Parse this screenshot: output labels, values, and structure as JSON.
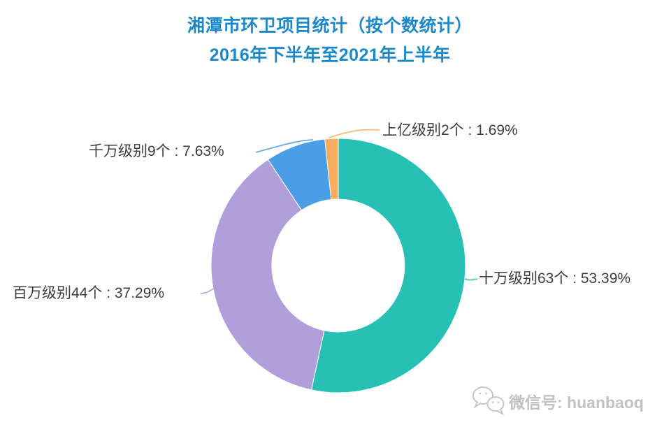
{
  "chart_data": {
    "type": "pie",
    "subtype": "donut",
    "title": "湘潭市环卫项目统计（按个数统计）",
    "subtitle": "2016年下半年至2021年上半年",
    "title_color": "#1b89c9",
    "label_color": "#3d3d3d",
    "unit": "个",
    "start_angle": "12-oclock",
    "direction": "clockwise",
    "inner_radius_ratio": 0.52,
    "background": "#ffffff",
    "slices": [
      {
        "name": "十万级别",
        "count": 63,
        "percent": 53.39,
        "color": "#26c0b4",
        "label_text": "十万级别63个 : 53.39%"
      },
      {
        "name": "百万级别",
        "count": 44,
        "percent": 37.29,
        "color": "#b19fdc",
        "label_text": "百万级别44个 : 37.29%"
      },
      {
        "name": "千万级别",
        "count": 9,
        "percent": 7.63,
        "color": "#4a9ee6",
        "label_text": "千万级别9个 : 7.63%"
      },
      {
        "name": "上亿级别",
        "count": 2,
        "percent": 1.69,
        "color": "#f6ad60",
        "label_text": "上亿级别2个 : 1.69%"
      }
    ]
  },
  "watermark": {
    "icon": "wechat-icon",
    "text": "微信号: huanbaoq",
    "color": "#c2c2c2"
  }
}
